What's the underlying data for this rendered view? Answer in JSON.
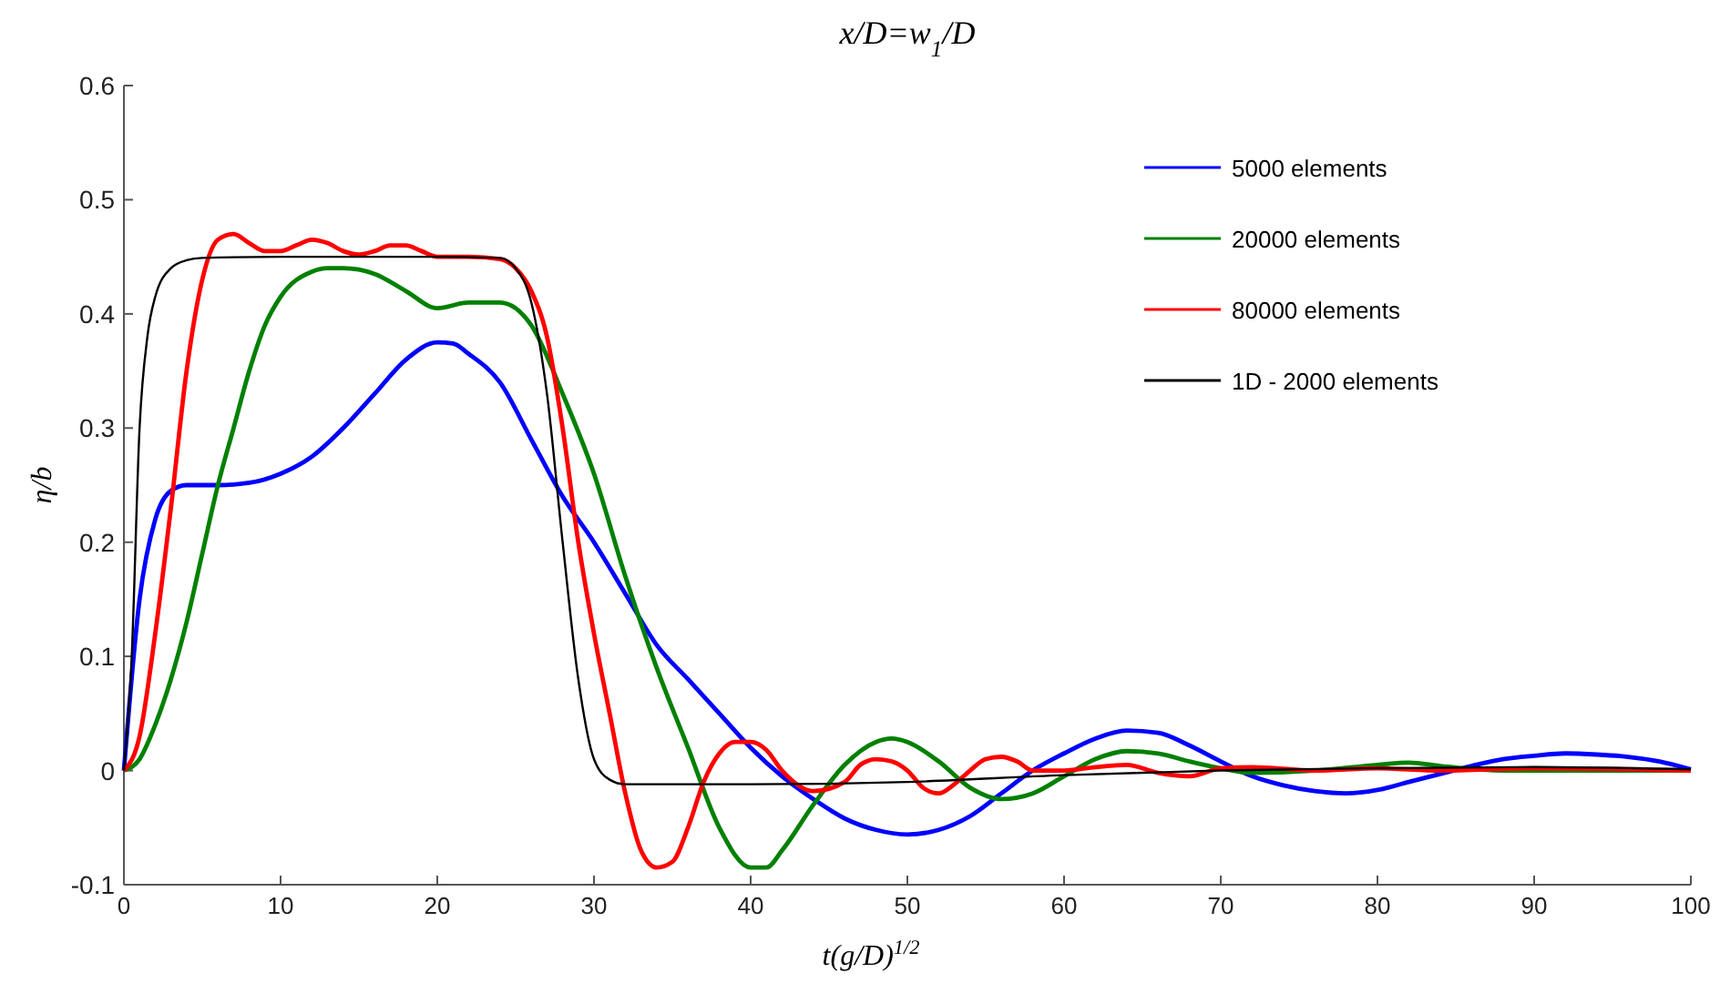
{
  "chart_data": {
    "type": "line",
    "title": "x/D=w$_{1}$/D",
    "xlabel": "t(g/D)$^{1/2}$",
    "ylabel": "η/b",
    "xlim": [
      0,
      100
    ],
    "xticks": [
      0,
      10,
      20,
      30,
      40,
      50,
      60,
      70,
      80,
      90,
      100
    ],
    "ylim": [
      -0.1,
      0.6
    ],
    "yticks": [
      -0.1,
      0,
      0.1,
      0.2,
      0.3,
      0.4,
      0.5,
      0.6
    ],
    "grid": false,
    "legend": "top right",
    "marker": "none",
    "line_style": "solid",
    "series": [
      {
        "name": "5000 elements",
        "color": "#0000ff",
        "x": [
          0,
          1,
          2,
          3,
          4,
          6,
          8,
          10,
          12,
          14,
          16,
          18,
          20,
          21,
          22,
          24,
          26,
          28,
          30,
          32,
          34,
          36,
          38,
          40,
          42,
          44,
          46,
          48,
          50,
          52,
          54,
          56,
          58,
          60,
          62,
          64,
          66,
          68,
          70,
          72,
          74,
          76,
          78,
          80,
          82,
          84,
          86,
          88,
          90,
          92,
          94,
          96,
          98,
          100
        ],
        "values": [
          0,
          0.15,
          0.22,
          0.245,
          0.25,
          0.25,
          0.252,
          0.26,
          0.275,
          0.3,
          0.33,
          0.36,
          0.375,
          0.374,
          0.365,
          0.34,
          0.29,
          0.24,
          0.2,
          0.155,
          0.11,
          0.08,
          0.05,
          0.02,
          -0.005,
          -0.025,
          -0.042,
          -0.052,
          -0.056,
          -0.052,
          -0.04,
          -0.02,
          0,
          0.015,
          0.028,
          0.035,
          0.033,
          0.022,
          0.008,
          -0.005,
          -0.013,
          -0.018,
          -0.02,
          -0.017,
          -0.01,
          -0.003,
          0.004,
          0.01,
          0.013,
          0.015,
          0.014,
          0.012,
          0.008,
          0.001
        ]
      },
      {
        "name": "20000 elements",
        "color": "#008000",
        "x": [
          0,
          1,
          2,
          3,
          4,
          5,
          6,
          7,
          8,
          9,
          10,
          12,
          13,
          14,
          16,
          18,
          20,
          22,
          24,
          26,
          28,
          30,
          32,
          34,
          36,
          38,
          40,
          41,
          42,
          44,
          46,
          48,
          49,
          50,
          52,
          54,
          56,
          58,
          60,
          62,
          64,
          66,
          68,
          70,
          72,
          76,
          80,
          82,
          84,
          88,
          100
        ],
        "values": [
          0,
          0.01,
          0.04,
          0.08,
          0.13,
          0.19,
          0.25,
          0.3,
          0.35,
          0.39,
          0.415,
          0.437,
          0.44,
          0.44,
          0.435,
          0.42,
          0.405,
          0.41,
          0.41,
          0.39,
          0.33,
          0.26,
          0.17,
          0.09,
          0.02,
          -0.05,
          -0.085,
          -0.085,
          -0.07,
          -0.03,
          0.005,
          0.025,
          0.028,
          0.025,
          0.008,
          -0.015,
          -0.025,
          -0.02,
          -0.005,
          0.01,
          0.017,
          0.015,
          0.008,
          0.002,
          -0.002,
          0,
          0.005,
          0.007,
          0.004,
          0,
          0
        ]
      },
      {
        "name": "80000 elements",
        "color": "#ff0000",
        "x": [
          0,
          1,
          2,
          3,
          4,
          5,
          6,
          7,
          8,
          9,
          10,
          11,
          12,
          13,
          14,
          15,
          16,
          17,
          18,
          19,
          20,
          22,
          24,
          25,
          26,
          27,
          28,
          29,
          30,
          31,
          32,
          33,
          34,
          35,
          36,
          37,
          38,
          39,
          40,
          41,
          42,
          44,
          46,
          47,
          48,
          49,
          50,
          51,
          52,
          53,
          54,
          55,
          56,
          57,
          58,
          60,
          62,
          64,
          66,
          68,
          70,
          72,
          76,
          80,
          84,
          90,
          100
        ],
        "values": [
          0,
          0.03,
          0.12,
          0.23,
          0.35,
          0.43,
          0.465,
          0.47,
          0.462,
          0.455,
          0.455,
          0.46,
          0.465,
          0.462,
          0.455,
          0.452,
          0.455,
          0.46,
          0.46,
          0.455,
          0.45,
          0.45,
          0.448,
          0.44,
          0.42,
          0.38,
          0.3,
          0.2,
          0.12,
          0.05,
          -0.02,
          -0.07,
          -0.085,
          -0.08,
          -0.05,
          -0.01,
          0.015,
          0.025,
          0.025,
          0.018,
          0,
          -0.018,
          -0.01,
          0.005,
          0.01,
          0.008,
          0,
          -0.015,
          -0.02,
          -0.012,
          0,
          0.01,
          0.012,
          0.008,
          0,
          0,
          0.003,
          0.005,
          -0.002,
          -0.005,
          0.002,
          0.003,
          0,
          0.002,
          0,
          0.002,
          0
        ]
      },
      {
        "name": "1D - 2000 elements",
        "color": "#000000",
        "x": [
          0,
          0.5,
          1,
          1.5,
          2,
          3,
          4,
          5,
          10,
          20,
          24,
          25,
          26,
          27,
          28,
          29,
          30,
          31,
          32,
          40,
          50,
          60,
          70,
          80,
          90,
          100
        ],
        "values": [
          0,
          0.1,
          0.3,
          0.38,
          0.415,
          0.44,
          0.447,
          0.449,
          0.45,
          0.45,
          0.449,
          0.44,
          0.41,
          0.33,
          0.2,
          0.08,
          0.01,
          -0.008,
          -0.012,
          -0.012,
          -0.01,
          -0.004,
          0,
          0.002,
          0.003,
          0.001
        ]
      }
    ]
  }
}
